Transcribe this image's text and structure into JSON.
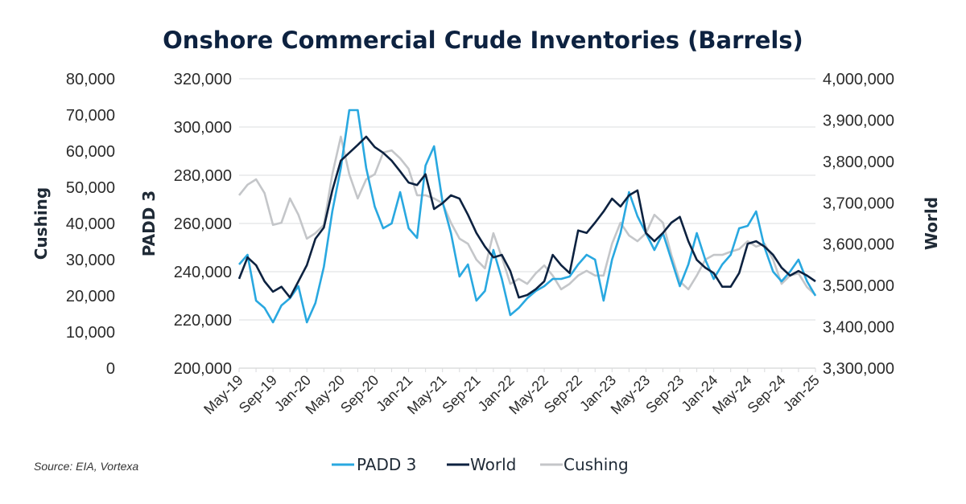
{
  "chart_data": {
    "type": "line",
    "title": "Onshore Commercial Crude Inventories (Barrels)",
    "source": "Source: EIA, Vortexa",
    "x": [
      "2019-05",
      "2019-06",
      "2019-07",
      "2019-08",
      "2019-09",
      "2019-10",
      "2019-11",
      "2019-12",
      "2020-01",
      "2020-02",
      "2020-03",
      "2020-04",
      "2020-05",
      "2020-06",
      "2020-07",
      "2020-08",
      "2020-09",
      "2020-10",
      "2020-11",
      "2020-12",
      "2021-01",
      "2021-02",
      "2021-03",
      "2021-04",
      "2021-05",
      "2021-06",
      "2021-07",
      "2021-08",
      "2021-09",
      "2021-10",
      "2021-11",
      "2021-12",
      "2022-01",
      "2022-02",
      "2022-03",
      "2022-04",
      "2022-05",
      "2022-06",
      "2022-07",
      "2022-08",
      "2022-09",
      "2022-10",
      "2022-11",
      "2022-12",
      "2023-01",
      "2023-02",
      "2023-03",
      "2023-04",
      "2023-05",
      "2023-06",
      "2023-07",
      "2023-08",
      "2023-09",
      "2023-10",
      "2023-11",
      "2023-12",
      "2024-01",
      "2024-02",
      "2024-03",
      "2024-04",
      "2024-05",
      "2024-06",
      "2024-07",
      "2024-08",
      "2024-09",
      "2024-10",
      "2024-11",
      "2024-12",
      "2025-01"
    ],
    "x_tick_labels": [
      "May-19",
      "Sep-19",
      "Jan-20",
      "May-20",
      "Sep-20",
      "Jan-21",
      "May-21",
      "Sep-21",
      "Jan-22",
      "May-22",
      "Sep-22",
      "Jan-23",
      "May-23",
      "Sep-23",
      "Jan-24",
      "May-24",
      "Sep-24",
      "Jan-25"
    ],
    "axes": {
      "cushing": {
        "label": "Cushing",
        "side": "outer-left",
        "ylim": [
          0,
          80000
        ],
        "ticks": [
          "0",
          "10,000",
          "20,000",
          "30,000",
          "40,000",
          "50,000",
          "60,000",
          "70,000",
          "80,000"
        ]
      },
      "padd3": {
        "label": "PADD 3",
        "side": "left",
        "ylim": [
          200000,
          320000
        ],
        "ticks": [
          "200,000",
          "220,000",
          "240,000",
          "260,000",
          "280,000",
          "300,000",
          "320,000"
        ]
      },
      "world": {
        "label": "World",
        "side": "right",
        "ylim": [
          3300000,
          4000000
        ],
        "ticks": [
          "3,300,000",
          "3,400,000",
          "3,500,000",
          "3,600,000",
          "3,700,000",
          "3,800,000",
          "3,900,000",
          "4,000,000"
        ]
      }
    },
    "grid": true,
    "legend_position": "bottom",
    "series": [
      {
        "name": "PADD 3",
        "axis": "padd3",
        "color": "#29a8e0",
        "values": [
          243000,
          247000,
          228000,
          225000,
          219000,
          226000,
          229000,
          234000,
          219000,
          227000,
          242000,
          265000,
          283000,
          307000,
          307000,
          283000,
          267000,
          258000,
          260000,
          273000,
          258000,
          254000,
          284000,
          292000,
          269000,
          256000,
          238000,
          243000,
          228000,
          232000,
          249000,
          237000,
          222000,
          225000,
          229000,
          232000,
          234000,
          237000,
          237000,
          238000,
          243000,
          247000,
          245000,
          228000,
          245000,
          256000,
          273000,
          263000,
          256000,
          249000,
          256000,
          245000,
          234000,
          243000,
          256000,
          245000,
          237000,
          243000,
          247000,
          258000,
          259000,
          265000,
          250000,
          240000,
          236000,
          240000,
          245000,
          236000,
          230000
        ]
      },
      {
        "name": "World",
        "axis": "world",
        "color": "#0d2240",
        "values": [
          3516000,
          3568000,
          3549000,
          3510000,
          3485000,
          3497000,
          3471000,
          3510000,
          3549000,
          3613000,
          3640000,
          3730000,
          3802000,
          3821000,
          3840000,
          3860000,
          3835000,
          3821000,
          3802000,
          3776000,
          3749000,
          3743000,
          3769000,
          3685000,
          3699000,
          3718000,
          3710000,
          3671000,
          3627000,
          3594000,
          3568000,
          3574000,
          3535000,
          3471000,
          3477000,
          3491000,
          3510000,
          3574000,
          3549000,
          3530000,
          3633000,
          3627000,
          3652000,
          3679000,
          3710000,
          3691000,
          3718000,
          3730000,
          3627000,
          3607000,
          3627000,
          3652000,
          3666000,
          3607000,
          3562000,
          3543000,
          3530000,
          3497000,
          3497000,
          3530000,
          3601000,
          3607000,
          3594000,
          3574000,
          3543000,
          3524000,
          3535000,
          3524000,
          3510000
        ]
      },
      {
        "name": "Cushing",
        "axis": "cushing",
        "color": "#c4c6c9",
        "values": [
          47800,
          50700,
          52200,
          48400,
          39600,
          40200,
          46900,
          42400,
          35800,
          37300,
          39600,
          53600,
          64000,
          53600,
          46900,
          52200,
          53600,
          59600,
          60200,
          58000,
          55100,
          47800,
          47800,
          46900,
          45600,
          40200,
          35800,
          34400,
          30000,
          27600,
          37300,
          30700,
          23300,
          24700,
          23300,
          26200,
          28400,
          25600,
          21800,
          23300,
          25600,
          26900,
          25600,
          25600,
          34400,
          40200,
          36700,
          35100,
          37300,
          42400,
          40200,
          31300,
          24000,
          21800,
          25600,
          30000,
          31300,
          31300,
          32200,
          32900,
          35100,
          33600,
          34400,
          30000,
          23300,
          25600,
          26200,
          22400,
          20200
        ]
      }
    ]
  }
}
